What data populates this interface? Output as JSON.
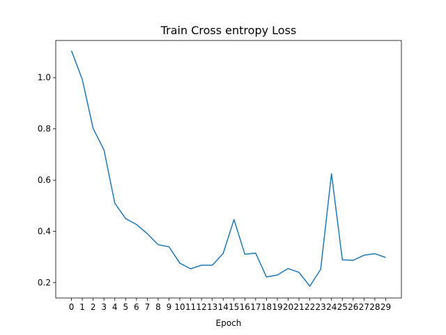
{
  "chart_data": {
    "type": "line",
    "title": "Train Cross entropy Loss",
    "xlabel": "Epoch",
    "ylabel": "",
    "x": [
      0,
      1,
      2,
      3,
      4,
      5,
      6,
      7,
      8,
      9,
      10,
      11,
      12,
      13,
      14,
      15,
      16,
      17,
      18,
      19,
      20,
      21,
      22,
      23,
      24,
      25,
      26,
      27,
      28,
      29
    ],
    "x_tick_labels": [
      "0",
      "1",
      "2",
      "3",
      "4",
      "5",
      "6",
      "7",
      "8",
      "9",
      "10",
      "11",
      "12",
      "13",
      "14",
      "15",
      "16",
      "17",
      "18",
      "19",
      "20",
      "21",
      "22",
      "23",
      "24",
      "25",
      "26",
      "27",
      "28",
      "29"
    ],
    "y_ticks": [
      0.2,
      0.4,
      0.6,
      0.8,
      1.0
    ],
    "y_tick_labels": [
      "0.2",
      "0.4",
      "0.6",
      "0.8",
      "1.0"
    ],
    "ylim": [
      0.14,
      1.145
    ],
    "xlim": [
      -1.45,
      30.45
    ],
    "grid": false,
    "series": [
      {
        "color": "#1f77b4",
        "values": [
          1.105,
          0.993,
          0.802,
          0.718,
          0.51,
          0.45,
          0.427,
          0.391,
          0.348,
          0.34,
          0.276,
          0.254,
          0.268,
          0.268,
          0.314,
          0.446,
          0.311,
          0.315,
          0.222,
          0.23,
          0.255,
          0.24,
          0.186,
          0.252,
          0.625,
          0.289,
          0.287,
          0.307,
          0.313,
          0.298
        ]
      }
    ]
  }
}
